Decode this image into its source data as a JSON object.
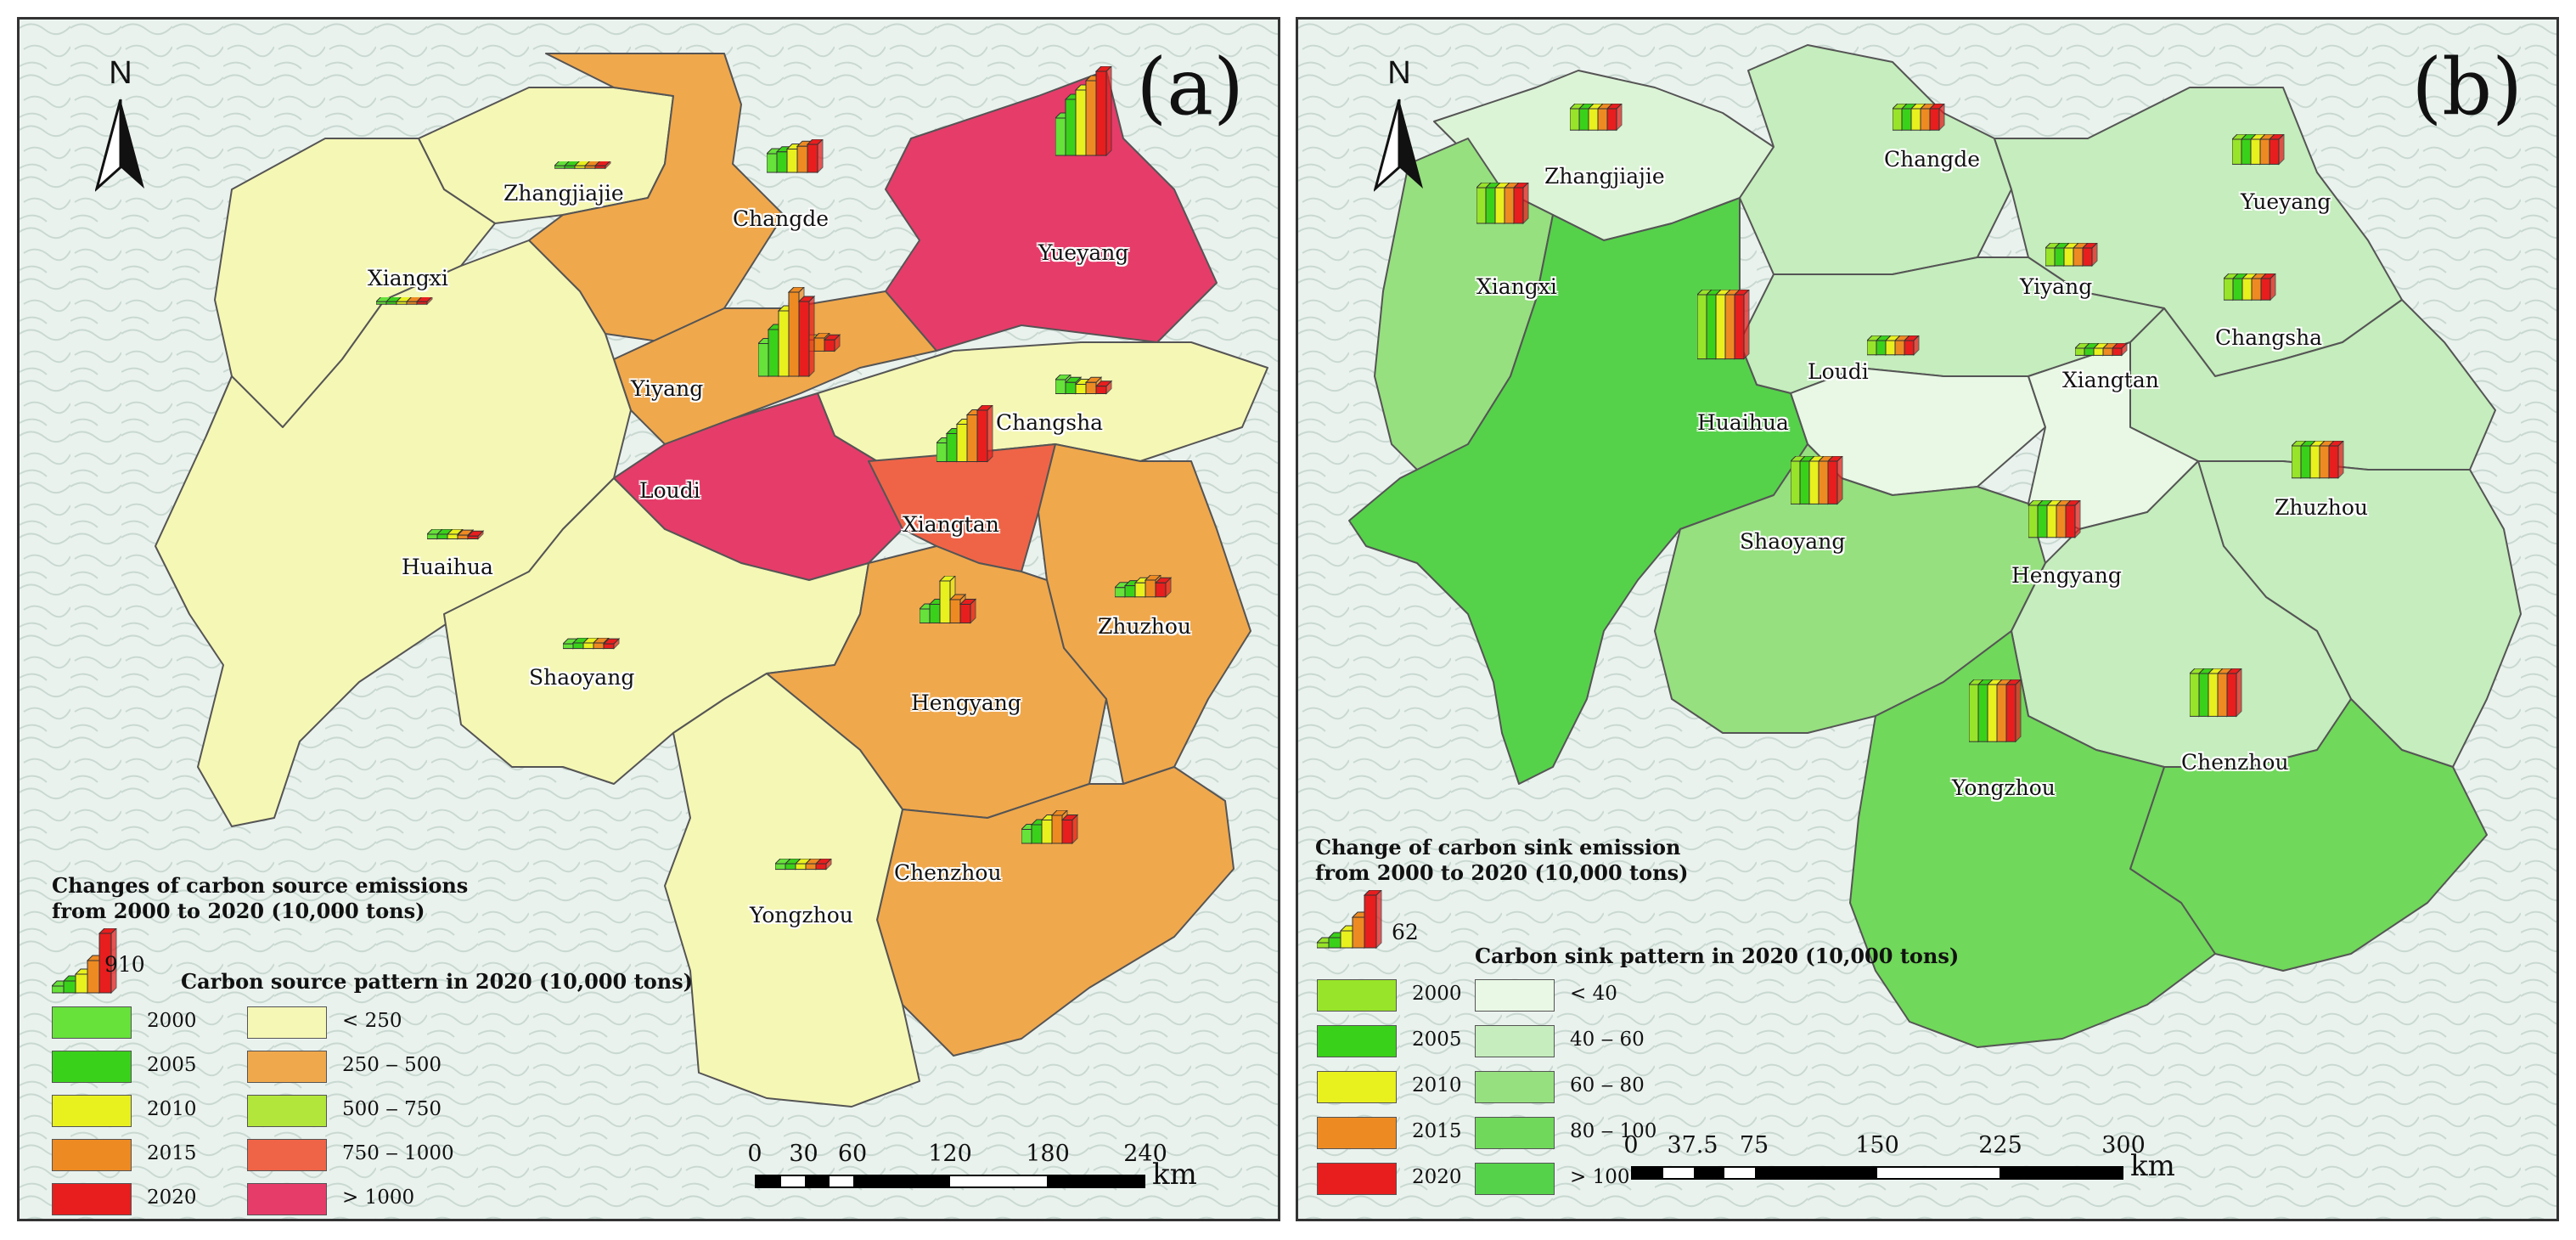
{
  "panel_a": {
    "label": "(a)",
    "north_label": "N",
    "cities": [
      {
        "name": "Zhangjiajie",
        "fill": "#f5f7b4",
        "bars": [
          2,
          2,
          2,
          2,
          2
        ]
      },
      {
        "name": "Changde",
        "fill": "#f0a84c",
        "bars": [
          20,
          22,
          25,
          28,
          30
        ]
      },
      {
        "name": "Yueyang",
        "fill": "#e63c6a",
        "bars": [
          40,
          60,
          70,
          80,
          90
        ]
      },
      {
        "name": "Xiangxi",
        "fill": "#f5f7b4",
        "bars": [
          2,
          2,
          2,
          2,
          2
        ]
      },
      {
        "name": "Yiyang",
        "fill": "#f0a84c",
        "bars": [
          8,
          10,
          12,
          14,
          12
        ]
      },
      {
        "name": "Changsha",
        "fill": "#f5f7b4",
        "bars": [
          15,
          12,
          10,
          12,
          8
        ]
      },
      {
        "name": "Loudi",
        "fill": "#e63c6a",
        "bars": [
          35,
          50,
          70,
          90,
          80
        ]
      },
      {
        "name": "Xiangtan",
        "fill": "#ef6447",
        "bars": [
          20,
          30,
          40,
          50,
          55
        ]
      },
      {
        "name": "Huaihua",
        "fill": "#f5f7b4",
        "bars": [
          5,
          5,
          5,
          4,
          3
        ]
      },
      {
        "name": "Zhuzhou",
        "fill": "#f0a84c",
        "bars": [
          10,
          12,
          15,
          18,
          15
        ]
      },
      {
        "name": "Shaoyang",
        "fill": "#f5f7b4",
        "bars": [
          5,
          6,
          6,
          6,
          5
        ]
      },
      {
        "name": "Hengyang",
        "fill": "#f0a84c",
        "bars": [
          15,
          20,
          45,
          25,
          20
        ]
      },
      {
        "name": "Chenzhou",
        "fill": "#f0a84c",
        "bars": [
          15,
          20,
          25,
          30,
          25
        ]
      },
      {
        "name": "Yongzhou",
        "fill": "#f5f7b4",
        "bars": [
          6,
          6,
          6,
          6,
          6
        ]
      }
    ],
    "legend_change_title_1": "Changes of carbon source emissions",
    "legend_change_title_2": "from 2000 to 2020 (10,000 tons)",
    "legend_change_max": "910",
    "legend_pattern_title": "Carbon source pattern in 2020 (10,000 tons)",
    "years": [
      {
        "label": "2000",
        "color": "#66e23a"
      },
      {
        "label": "2005",
        "color": "#3ad11a"
      },
      {
        "label": "2010",
        "color": "#e8f01e"
      },
      {
        "label": "2015",
        "color": "#ee8a22"
      },
      {
        "label": "2020",
        "color": "#e81e1e"
      }
    ],
    "classes": [
      {
        "label": "< 250",
        "color": "#f5f7b4"
      },
      {
        "label": "250 ‒ 500",
        "color": "#f0a84c"
      },
      {
        "label": "500 ‒ 750",
        "color": "#b2e63a"
      },
      {
        "label": "750 ‒ 1000",
        "color": "#ef6447"
      },
      {
        "label": "> 1000",
        "color": "#e63c6a"
      }
    ],
    "scale_ticks": [
      "0",
      "30",
      "60",
      "120",
      "180",
      "240"
    ],
    "scale_unit": "km"
  },
  "panel_b": {
    "label": "(b)",
    "north_label": "N",
    "cities": [
      {
        "name": "Zhangjiajie",
        "fill": "#dcf4d6",
        "bars": [
          6,
          6,
          6,
          6,
          6
        ]
      },
      {
        "name": "Changde",
        "fill": "#c5edbd",
        "bars": [
          6,
          6,
          6,
          6,
          6
        ]
      },
      {
        "name": "Yueyang",
        "fill": "#c5edbd",
        "bars": [
          7,
          7,
          7,
          7,
          7
        ]
      },
      {
        "name": "Xiangxi",
        "fill": "#96e07f",
        "bars": [
          10,
          10,
          10,
          10,
          10
        ]
      },
      {
        "name": "Yiyang",
        "fill": "#c5edbd",
        "bars": [
          5,
          5,
          5,
          5,
          5
        ]
      },
      {
        "name": "Changsha",
        "fill": "#c5edbd",
        "bars": [
          6,
          6,
          6,
          6,
          6
        ]
      },
      {
        "name": "Loudi",
        "fill": "#e8f8e4",
        "bars": [
          4,
          4,
          4,
          4,
          4
        ]
      },
      {
        "name": "Xiangtan",
        "fill": "#e8f8e4",
        "bars": [
          2,
          2,
          2,
          2,
          2
        ]
      },
      {
        "name": "Huaihua",
        "fill": "#55d24a",
        "bars": [
          18,
          18,
          18,
          18,
          18
        ]
      },
      {
        "name": "Zhuzhou",
        "fill": "#c5edbd",
        "bars": [
          9,
          9,
          9,
          9,
          9
        ]
      },
      {
        "name": "Shaoyang",
        "fill": "#96e07f",
        "bars": [
          12,
          12,
          12,
          12,
          12
        ]
      },
      {
        "name": "Hengyang",
        "fill": "#c5edbd",
        "bars": [
          9,
          9,
          9,
          9,
          9
        ]
      },
      {
        "name": "Chenzhou",
        "fill": "#70d85a",
        "bars": [
          12,
          12,
          12,
          12,
          12
        ]
      },
      {
        "name": "Yongzhou",
        "fill": "#70d85a",
        "bars": [
          16,
          16,
          16,
          16,
          16
        ]
      }
    ],
    "legend_change_title_1": "Change of carbon sink emission",
    "legend_change_title_2": "from 2000 to 2020 (10,000 tons)",
    "legend_change_max": "62",
    "legend_pattern_title": "Carbon sink pattern in 2020 (10,000 tons)",
    "years": [
      {
        "label": "2000",
        "color": "#98e42a"
      },
      {
        "label": "2005",
        "color": "#3ad11a"
      },
      {
        "label": "2010",
        "color": "#e8f01e"
      },
      {
        "label": "2015",
        "color": "#ee8a22"
      },
      {
        "label": "2020",
        "color": "#e81e1e"
      }
    ],
    "classes": [
      {
        "label": "< 40",
        "color": "#e8f8e4"
      },
      {
        "label": "40 ‒ 60",
        "color": "#c5edbd"
      },
      {
        "label": "60 ‒ 80",
        "color": "#96e07f"
      },
      {
        "label": "80 ‒ 100",
        "color": "#70d85a"
      },
      {
        "label": "> 100",
        "color": "#55d24a"
      }
    ],
    "scale_ticks": [
      "0",
      "37.5",
      "75",
      "150",
      "225",
      "300"
    ],
    "scale_unit": "km"
  }
}
